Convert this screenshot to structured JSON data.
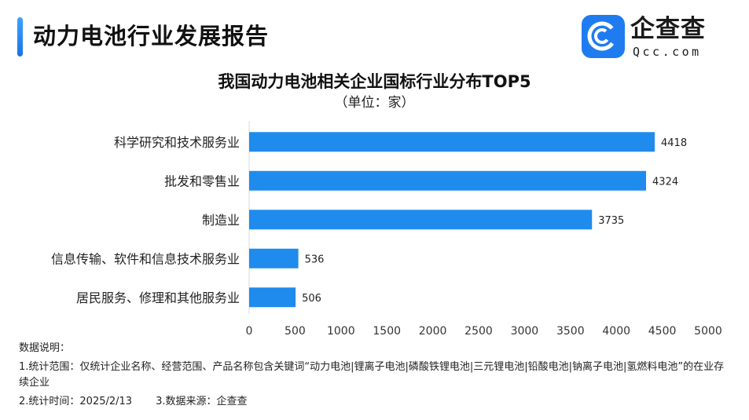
{
  "header": {
    "title": "动力电池行业发展报告"
  },
  "logo": {
    "text": "企查查",
    "sub": "Qcc.com",
    "icon": "qcc-logo-icon",
    "color": "#1f7cf0"
  },
  "chart_data": {
    "type": "bar",
    "orientation": "horizontal",
    "title": "我国动力电池相关企业国标行业分布TOP5",
    "subtitle": "（单位：家）",
    "categories": [
      "科学研究和技术服务业",
      "批发和零售业",
      "制造业",
      "信息传输、软件和信息技术服务业",
      "居民服务、修理和其他服务业"
    ],
    "values": [
      4418,
      4324,
      3735,
      536,
      506
    ],
    "xlim": [
      0,
      5000
    ],
    "xticks": [
      "0",
      "500",
      "1000",
      "1500",
      "2000",
      "2500",
      "3000",
      "3500",
      "4000",
      "4500",
      "5000"
    ],
    "grid": false,
    "bar_color": "#1f8bec"
  },
  "notes": {
    "heading": "数据说明：",
    "scope": "1.统计范围：仅统计企业名称、经营范围、产品名称包含关键词“动力电池|锂离子电池|磷酸铁锂电池|三元锂电池|铅酸电池|钠离子电池|氢燃料电池”的在业存续企业",
    "time": "2.统计时间：2025/2/13",
    "source": "3.数据来源：企查查"
  }
}
